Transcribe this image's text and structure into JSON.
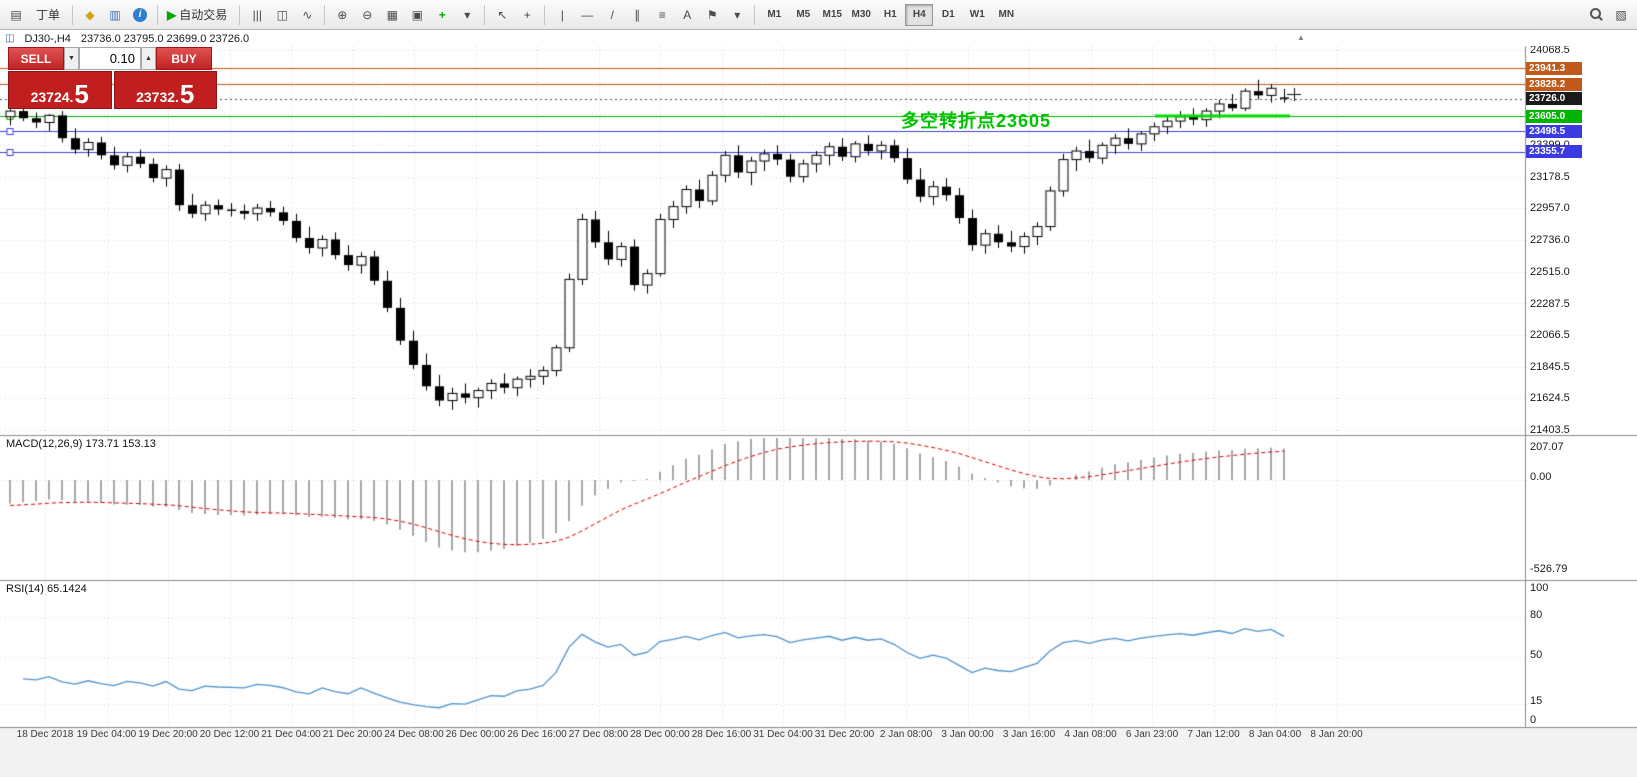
{
  "toolbar": {
    "groups": [
      {
        "items": [
          {
            "name": "window-menu-icon"
          },
          {
            "name": "new-order-button",
            "label": "丁单"
          }
        ]
      },
      {
        "items": [
          {
            "name": "favorites-icon"
          },
          {
            "name": "market-watch-icon"
          },
          {
            "name": "info-icon"
          }
        ]
      },
      {
        "items": [
          {
            "name": "auto-trading-button",
            "label": "自动交易"
          }
        ]
      },
      {
        "items": [
          {
            "name": "bar-chart-icon"
          },
          {
            "name": "candlestick-chart-icon"
          },
          {
            "name": "line-chart-icon"
          }
        ]
      },
      {
        "items": [
          {
            "name": "zoom-in-icon"
          },
          {
            "name": "zoom-out-icon"
          },
          {
            "name": "grid-icon"
          },
          {
            "name": "tile-windows-icon"
          },
          {
            "name": "indicators-icon"
          },
          {
            "name": "indicators-dropdown-icon"
          }
        ]
      },
      {
        "items": [
          {
            "name": "cursor-icon"
          },
          {
            "name": "crosshair-icon"
          }
        ]
      },
      {
        "items": [
          {
            "name": "vertical-line-icon"
          },
          {
            "name": "horizontal-line-icon"
          },
          {
            "name": "trendline-icon"
          },
          {
            "name": "channel-icon"
          },
          {
            "name": "fibonacci-icon"
          },
          {
            "name": "text-icon"
          },
          {
            "name": "label-icon"
          },
          {
            "name": "shapes-dropdown-icon"
          }
        ]
      }
    ],
    "timeframes": [
      {
        "label": "M1"
      },
      {
        "label": "M5"
      },
      {
        "label": "M15"
      },
      {
        "label": "M30"
      },
      {
        "label": "H1"
      },
      {
        "label": "H4",
        "active": true
      },
      {
        "label": "D1"
      },
      {
        "label": "W1"
      },
      {
        "label": "MN"
      }
    ],
    "right_icons": [
      {
        "name": "search-icon"
      },
      {
        "name": "image-icon"
      }
    ]
  },
  "chart": {
    "title": {
      "symbol": "DJ30-,H4",
      "ohlc": "23736.0 23795.0 23699.0 23726.0"
    },
    "trade_panel": {
      "sell_label": "SELL",
      "buy_label": "BUY",
      "volume": "0.10",
      "sell_price_main": "23724.",
      "sell_price_big": "5",
      "buy_price_main": "23732.",
      "buy_price_big": "5"
    },
    "annotation_text": "多空转折点23605",
    "price_axis_labels": [
      {
        "text": "24068.5",
        "price": 24068.5
      },
      {
        "text": "23399.0",
        "price": 23399.0
      },
      {
        "text": "23178.5",
        "price": 23178.5
      },
      {
        "text": "22957.0",
        "price": 22957.0
      },
      {
        "text": "22736.0",
        "price": 22736.0
      },
      {
        "text": "22515.0",
        "price": 22515.0
      },
      {
        "text": "22287.5",
        "price": 22287.5
      },
      {
        "text": "22066.5",
        "price": 22066.5
      },
      {
        "text": "21845.5",
        "price": 21845.5
      },
      {
        "text": "21624.5",
        "price": 21624.5
      },
      {
        "text": "21403.5",
        "price": 21403.5
      }
    ],
    "price_badges": [
      {
        "text": "23941.3",
        "price": 23941.3,
        "color": "#C05A1A"
      },
      {
        "text": "23828.2",
        "price": 23828.2,
        "color": "#C05A1A"
      },
      {
        "text": "23726.0",
        "price": 23726.0,
        "color": "#1a1a1a"
      },
      {
        "text": "23605.0",
        "price": 23605.0,
        "color": "#00B400"
      },
      {
        "text": "23498.5",
        "price": 23498.5,
        "color": "#3A3AE0"
      },
      {
        "text": "23355.7",
        "price": 23355.7,
        "color": "#3A3AE0"
      }
    ],
    "levels": [
      {
        "price": 23941.3,
        "color": "#C05A1A",
        "marker": false
      },
      {
        "price": 23828.2,
        "color": "#C05A1A",
        "marker": false
      },
      {
        "price": 23605.0,
        "color": "#00B400",
        "marker": true
      },
      {
        "price": 23498.5,
        "color": "#4242DC",
        "marker": true
      },
      {
        "price": 23355.7,
        "color": "#4242DC",
        "marker": true
      }
    ],
    "highlight_segment": {
      "price": 23605.0,
      "color": "#00dc00"
    }
  },
  "chart_data": {
    "type": "candlestick",
    "symbol": "DJ30-",
    "period": "H4",
    "ylim": [
      21403.5,
      24068.5
    ],
    "last_ohlc": {
      "open": "23736.0",
      "high": "23795.0",
      "low": "23699.0",
      "close": "23726.0"
    },
    "ohlc": [
      [
        23600,
        23660,
        23540,
        23640
      ],
      [
        23640,
        23680,
        23570,
        23590
      ],
      [
        23590,
        23630,
        23520,
        23560
      ],
      [
        23560,
        23620,
        23500,
        23610
      ],
      [
        23610,
        23640,
        23420,
        23450
      ],
      [
        23450,
        23520,
        23340,
        23370
      ],
      [
        23370,
        23450,
        23320,
        23420
      ],
      [
        23420,
        23460,
        23300,
        23330
      ],
      [
        23330,
        23390,
        23230,
        23260
      ],
      [
        23260,
        23350,
        23210,
        23320
      ],
      [
        23320,
        23370,
        23240,
        23270
      ],
      [
        23270,
        23310,
        23140,
        23170
      ],
      [
        23170,
        23260,
        23110,
        23230
      ],
      [
        23230,
        23270,
        22940,
        22980
      ],
      [
        22980,
        23060,
        22890,
        22920
      ],
      [
        22920,
        23010,
        22870,
        22980
      ],
      [
        22980,
        23020,
        22910,
        22950
      ],
      [
        22950,
        22995,
        22900,
        22940
      ],
      [
        22940,
        22985,
        22880,
        22920
      ],
      [
        22920,
        22990,
        22870,
        22960
      ],
      [
        22960,
        23010,
        22900,
        22930
      ],
      [
        22930,
        22970,
        22840,
        22870
      ],
      [
        22870,
        22920,
        22720,
        22750
      ],
      [
        22750,
        22830,
        22640,
        22680
      ],
      [
        22680,
        22770,
        22620,
        22740
      ],
      [
        22740,
        22790,
        22600,
        22630
      ],
      [
        22630,
        22700,
        22520,
        22560
      ],
      [
        22560,
        22650,
        22500,
        22620
      ],
      [
        22620,
        22660,
        22420,
        22450
      ],
      [
        22450,
        22520,
        22230,
        22260
      ],
      [
        22260,
        22330,
        22000,
        22030
      ],
      [
        22030,
        22100,
        21830,
        21860
      ],
      [
        21860,
        21940,
        21680,
        21710
      ],
      [
        21710,
        21790,
        21570,
        21610
      ],
      [
        21610,
        21700,
        21545,
        21660
      ],
      [
        21660,
        21730,
        21590,
        21630
      ],
      [
        21630,
        21700,
        21560,
        21680
      ],
      [
        21680,
        21760,
        21620,
        21730
      ],
      [
        21730,
        21800,
        21660,
        21700
      ],
      [
        21700,
        21780,
        21640,
        21760
      ],
      [
        21760,
        21830,
        21700,
        21780
      ],
      [
        21780,
        21850,
        21720,
        21820
      ],
      [
        21820,
        22000,
        21780,
        21980
      ],
      [
        21980,
        22500,
        21950,
        22460
      ],
      [
        22460,
        22920,
        22420,
        22880
      ],
      [
        22880,
        22940,
        22680,
        22720
      ],
      [
        22720,
        22800,
        22560,
        22600
      ],
      [
        22600,
        22720,
        22550,
        22690
      ],
      [
        22690,
        22740,
        22380,
        22420
      ],
      [
        22420,
        22530,
        22360,
        22500
      ],
      [
        22500,
        22920,
        22480,
        22880
      ],
      [
        22880,
        23010,
        22820,
        22970
      ],
      [
        22970,
        23120,
        22920,
        23090
      ],
      [
        23090,
        23160,
        22960,
        23010
      ],
      [
        23010,
        23220,
        22980,
        23190
      ],
      [
        23190,
        23360,
        23140,
        23330
      ],
      [
        23330,
        23400,
        23170,
        23210
      ],
      [
        23210,
        23320,
        23120,
        23290
      ],
      [
        23290,
        23370,
        23220,
        23340
      ],
      [
        23340,
        23400,
        23260,
        23300
      ],
      [
        23300,
        23340,
        23140,
        23180
      ],
      [
        23180,
        23300,
        23140,
        23270
      ],
      [
        23270,
        23360,
        23210,
        23330
      ],
      [
        23330,
        23420,
        23260,
        23390
      ],
      [
        23390,
        23450,
        23290,
        23320
      ],
      [
        23320,
        23430,
        23280,
        23410
      ],
      [
        23410,
        23470,
        23330,
        23360
      ],
      [
        23360,
        23430,
        23300,
        23400
      ],
      [
        23400,
        23440,
        23280,
        23310
      ],
      [
        23310,
        23380,
        23130,
        23160
      ],
      [
        23160,
        23240,
        23000,
        23040
      ],
      [
        23040,
        23150,
        22980,
        23110
      ],
      [
        23110,
        23170,
        23010,
        23050
      ],
      [
        23050,
        23100,
        22850,
        22890
      ],
      [
        22890,
        22950,
        22660,
        22700
      ],
      [
        22700,
        22810,
        22640,
        22780
      ],
      [
        22780,
        22840,
        22680,
        22720
      ],
      [
        22720,
        22800,
        22650,
        22690
      ],
      [
        22690,
        22790,
        22640,
        22760
      ],
      [
        22760,
        22860,
        22700,
        22830
      ],
      [
        22830,
        23110,
        22800,
        23080
      ],
      [
        23080,
        23340,
        23040,
        23300
      ],
      [
        23300,
        23390,
        23220,
        23360
      ],
      [
        23360,
        23440,
        23280,
        23310
      ],
      [
        23310,
        23420,
        23270,
        23400
      ],
      [
        23400,
        23480,
        23340,
        23450
      ],
      [
        23450,
        23520,
        23370,
        23410
      ],
      [
        23410,
        23500,
        23360,
        23480
      ],
      [
        23480,
        23560,
        23430,
        23530
      ],
      [
        23530,
        23610,
        23480,
        23570
      ],
      [
        23570,
        23640,
        23520,
        23600
      ],
      [
        23600,
        23660,
        23540,
        23580
      ],
      [
        23580,
        23660,
        23530,
        23640
      ],
      [
        23640,
        23720,
        23590,
        23690
      ],
      [
        23690,
        23760,
        23640,
        23660
      ],
      [
        23660,
        23800,
        23640,
        23780
      ],
      [
        23780,
        23860,
        23720,
        23750
      ],
      [
        23750,
        23830,
        23700,
        23800
      ],
      [
        23736,
        23795,
        23699,
        23726
      ]
    ],
    "time_labels": [
      "18 Dec 2018",
      "19 Dec 04:00",
      "19 Dec 20:00",
      "20 Dec 12:00",
      "21 Dec 04:00",
      "21 Dec 20:00",
      "24 Dec 08:00",
      "26 Dec 00:00",
      "26 Dec 16:00",
      "27 Dec 08:00",
      "28 Dec 00:00",
      "28 Dec 16:00",
      "31 Dec 04:00",
      "31 Dec 20:00",
      "2 Jan 08:00",
      "3 Jan 00:00",
      "3 Jan 16:00",
      "4 Jan 08:00",
      "6 Jan 23:00",
      "7 Jan 12:00",
      "8 Jan 04:00",
      "8 Jan 20:00"
    ]
  },
  "macd": {
    "label": "MACD(12,26,9) 173.71 153.13",
    "axis_labels": [
      "207.07",
      "0.00",
      "-526.79"
    ]
  },
  "rsi": {
    "label": "RSI(14) 65.1424",
    "axis_labels": [
      "100",
      "80",
      "50",
      "15",
      "0"
    ]
  }
}
